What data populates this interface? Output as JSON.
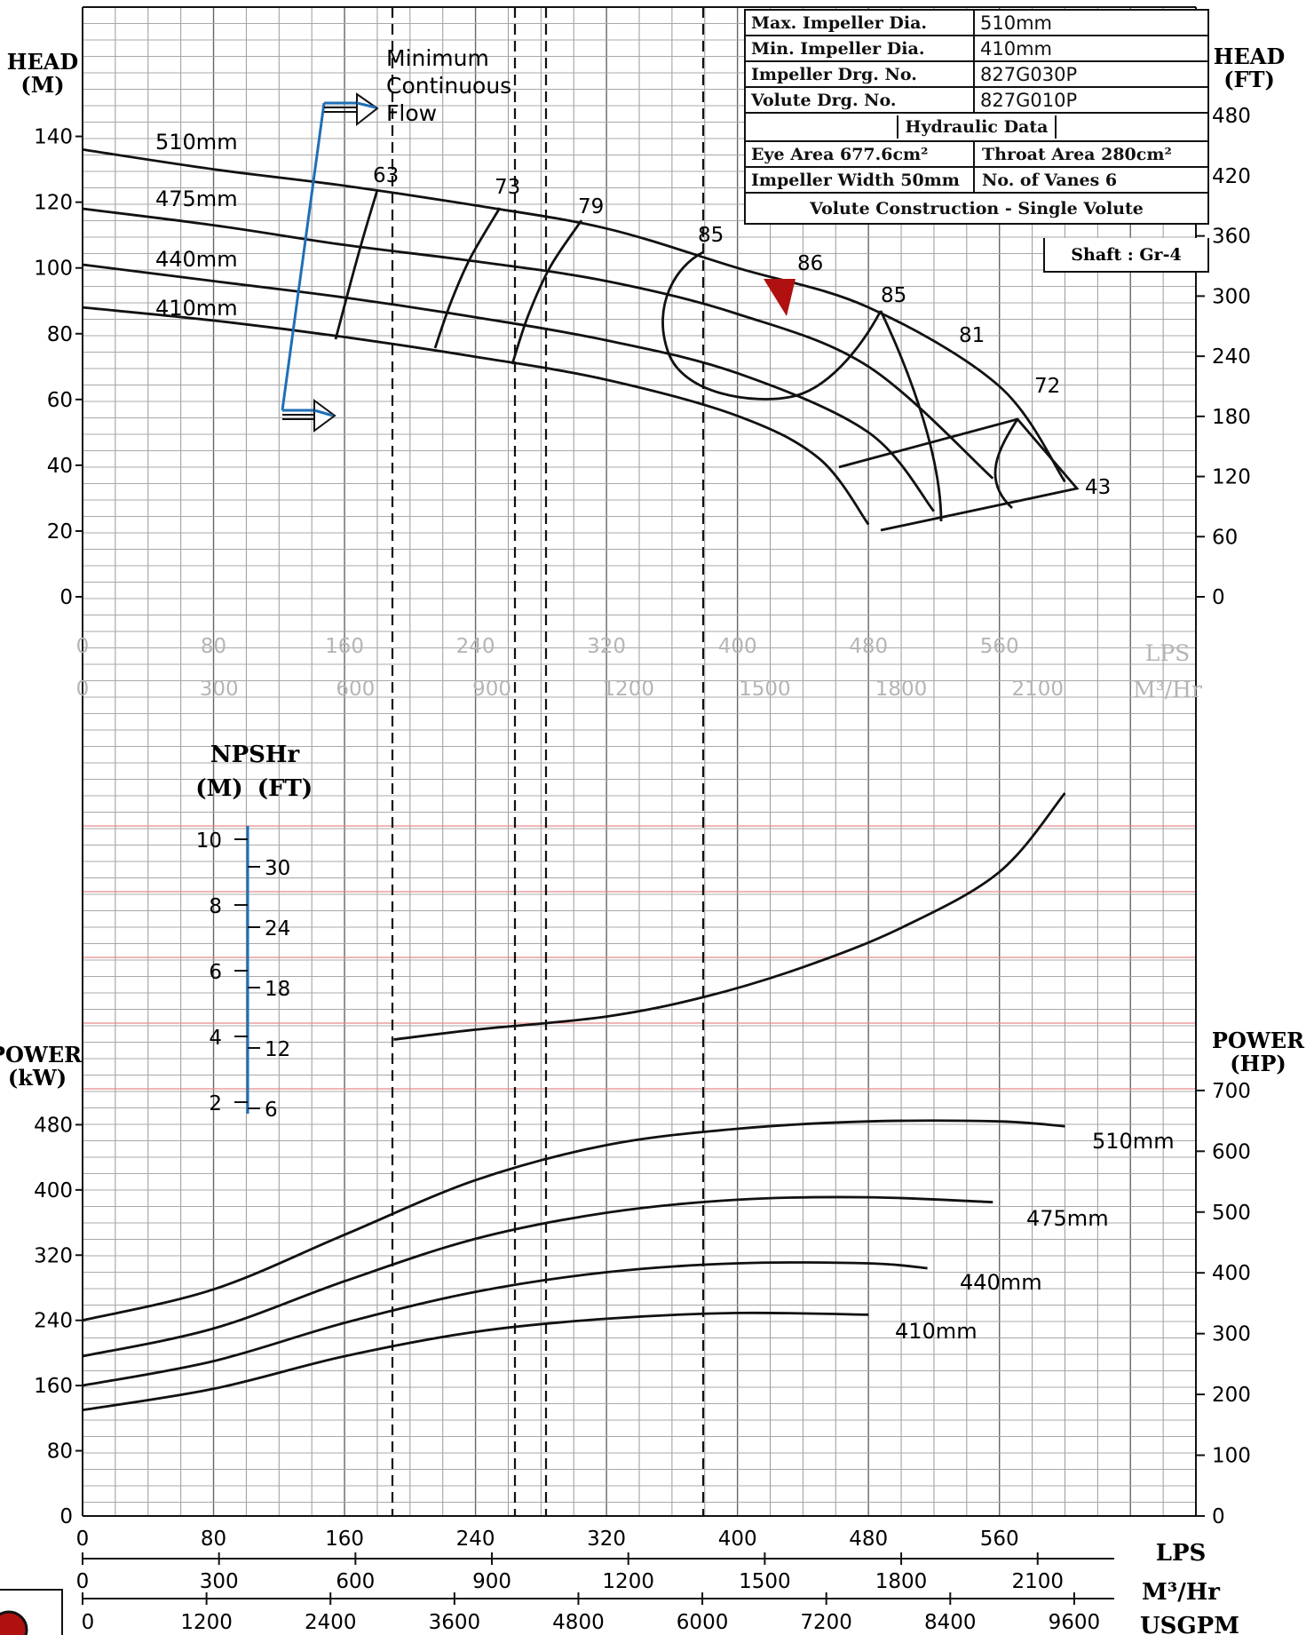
{
  "info_table": {
    "max_impeller_label": "Max. Impeller Dia.",
    "max_impeller_value": "510mm",
    "min_impeller_label": "Min. Impeller Dia.",
    "min_impeller_value": "410mm",
    "impeller_drg_label": "Impeller Drg. No.",
    "impeller_drg_value": "827G030P",
    "volute_drg_label": "Volute Drg. No.",
    "volute_drg_value": "827G010P",
    "hydraulic_header": "Hydraulic Data",
    "eye_area": "Eye Area 677.6cm²",
    "throat_area": "Throat Area 280cm²",
    "impeller_width": "Impeller Width 50mm",
    "vanes": "No. of Vanes 6",
    "volute_construction": "Volute Construction - Single Volute",
    "shaft": "Shaft : Gr-4"
  },
  "colors": {
    "curve": "#111111",
    "grid": "#7a7a7a",
    "blue": "#1f6fb5",
    "bep": "#b01010",
    "redgrid": "#e88a8a",
    "ghost": "#b5b5b5"
  },
  "chart_data": {
    "type": "line",
    "title": "",
    "axis_labels": {
      "head_m": [
        "HEAD",
        "(M)"
      ],
      "head_ft": [
        "HEAD",
        "(FT)"
      ],
      "power_kw": [
        "POWER",
        "(kW)"
      ],
      "power_hp": [
        "POWER",
        "(HP)"
      ],
      "npshr": [
        "NPSHr",
        "(M)",
        "(FT)"
      ],
      "lps": "LPS",
      "m3hr": "M³/Hr",
      "usgpm": "USGPM"
    },
    "x_lps_range": [
      0,
      680
    ],
    "head_m_range": [
      0,
      180
    ],
    "power_kw_range": [
      0,
      620
    ],
    "ticks": {
      "lps": [
        "0",
        "80",
        "160",
        "240",
        "320",
        "400",
        "480",
        "560"
      ],
      "m3hr": [
        "0",
        "300",
        "600",
        "900",
        "1200",
        "1500",
        "1800",
        "2100"
      ],
      "usgpm": [
        "0",
        "1200",
        "2400",
        "3600",
        "4800",
        "6000",
        "7200",
        "8400",
        "9600"
      ],
      "head_m": [
        "0",
        "20",
        "40",
        "60",
        "80",
        "100",
        "120",
        "140"
      ],
      "head_ft": [
        "0",
        "60",
        "120",
        "180",
        "240",
        "300",
        "360",
        "420",
        "480"
      ],
      "power_kw": [
        "80",
        "160",
        "240",
        "320",
        "400",
        "480"
      ],
      "power_hp": [
        "0",
        "100",
        "200",
        "300",
        "400",
        "500",
        "600",
        "700"
      ],
      "npshr_m": [
        "2",
        "4",
        "6",
        "8",
        "10"
      ],
      "npshr_ft": [
        "6",
        "12",
        "18",
        "24",
        "30"
      ]
    },
    "head_series": [
      {
        "name": "510mm",
        "x": [
          0,
          80,
          160,
          240,
          320,
          400,
          480,
          560,
          600
        ],
        "y": [
          136,
          130,
          125,
          119,
          112,
          100,
          88,
          64,
          35
        ]
      },
      {
        "name": "475mm",
        "x": [
          0,
          80,
          160,
          240,
          320,
          400,
          480,
          556
        ],
        "y": [
          118,
          113,
          107,
          102,
          96,
          86,
          70,
          36
        ]
      },
      {
        "name": "440mm",
        "x": [
          0,
          80,
          160,
          240,
          320,
          400,
          480,
          520
        ],
        "y": [
          101,
          96,
          91,
          85,
          78,
          68,
          50,
          26
        ]
      },
      {
        "name": "410mm",
        "x": [
          0,
          80,
          160,
          240,
          320,
          400,
          450,
          480
        ],
        "y": [
          88,
          84,
          79,
          73,
          66,
          55,
          42,
          22
        ]
      }
    ],
    "efficiency_labels": [
      "63",
      "73",
      "79",
      "85",
      "86",
      "85",
      "81",
      "72",
      "43"
    ],
    "min_flow_label": [
      "Minimum",
      "Continuous",
      "Flow"
    ],
    "npsh_series": {
      "x": [
        190,
        240,
        320,
        380,
        440,
        500,
        560,
        600
      ],
      "y_m": [
        3.5,
        3.8,
        4.2,
        4.8,
        5.7,
        6.9,
        8.6,
        11.0
      ]
    },
    "power_series": [
      {
        "name": "510mm",
        "x": [
          0,
          80,
          160,
          240,
          320,
          400,
          480,
          560,
          600
        ],
        "y": [
          240,
          278,
          345,
          412,
          455,
          475,
          484,
          484,
          478
        ]
      },
      {
        "name": "475mm",
        "x": [
          0,
          80,
          160,
          240,
          320,
          400,
          480,
          556
        ],
        "y": [
          196,
          230,
          288,
          340,
          372,
          388,
          391,
          385
        ]
      },
      {
        "name": "440mm",
        "x": [
          0,
          80,
          160,
          240,
          320,
          400,
          480,
          516
        ],
        "y": [
          160,
          190,
          237,
          275,
          299,
          310,
          310,
          304
        ]
      },
      {
        "name": "410mm",
        "x": [
          0,
          80,
          160,
          240,
          320,
          400,
          480
        ],
        "y": [
          130,
          156,
          196,
          226,
          242,
          249,
          247
        ]
      }
    ],
    "grid": true
  }
}
